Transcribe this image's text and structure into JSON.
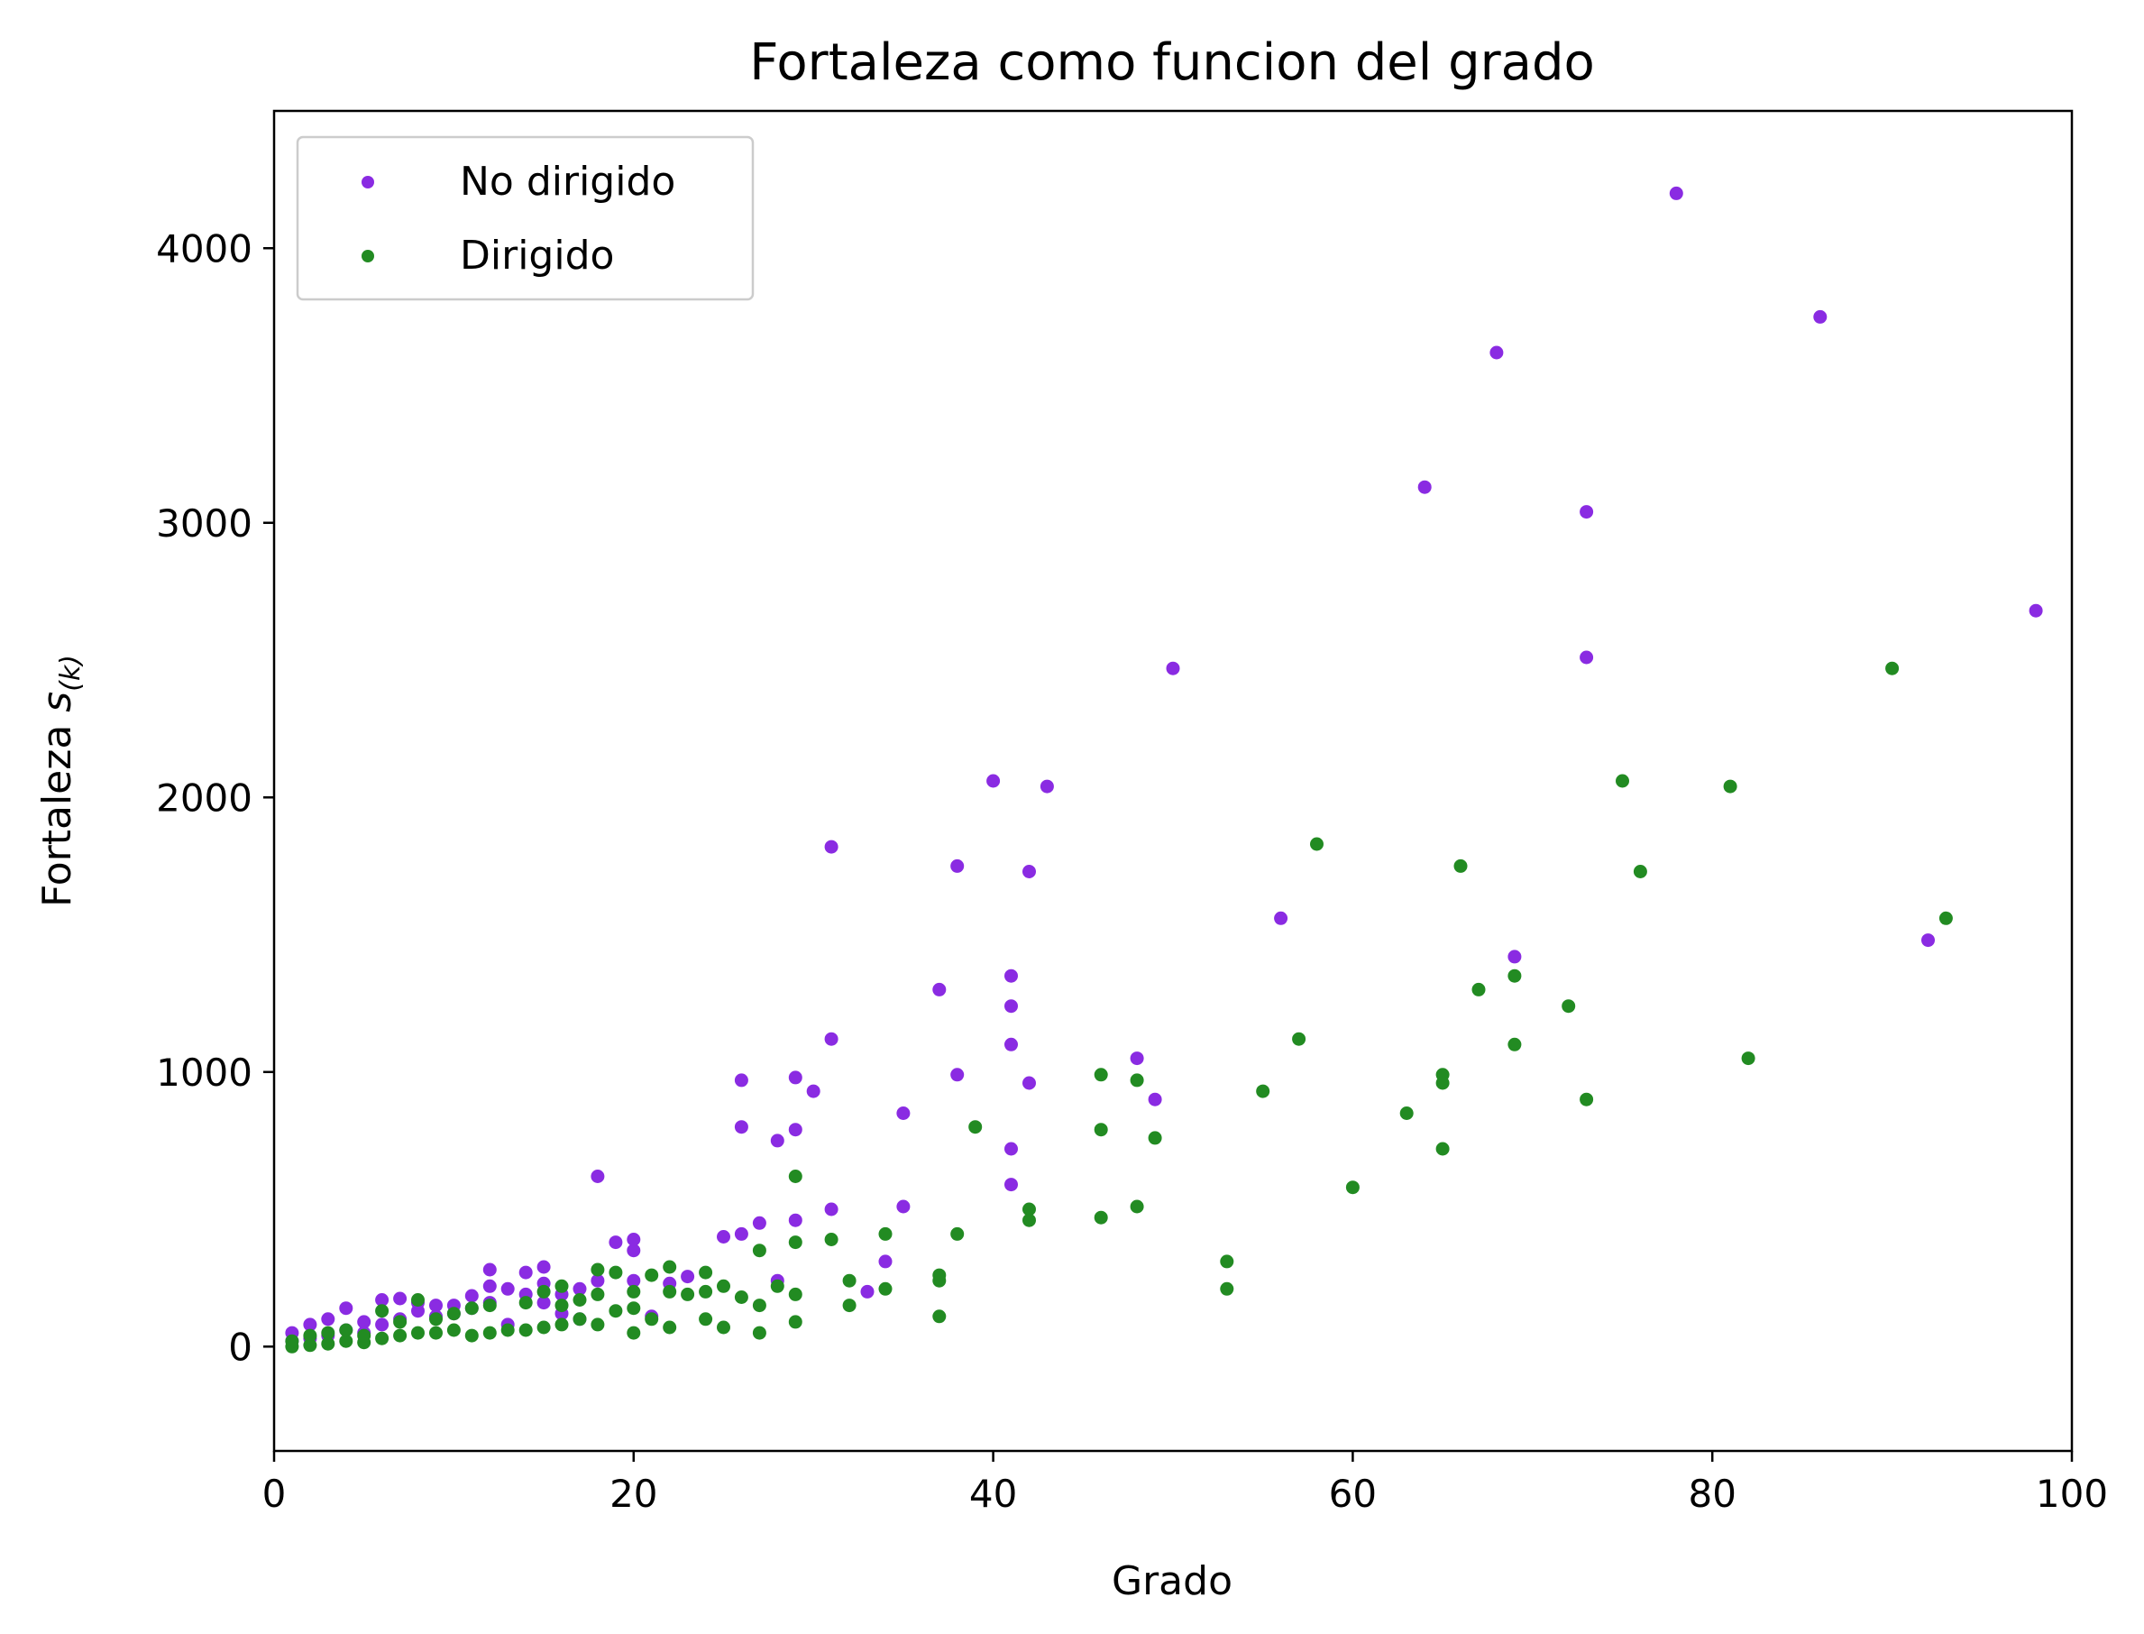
{
  "chart_data": {
    "type": "scatter",
    "title": "Fortaleza como funcion del grado",
    "xlabel": "Grado",
    "ylabel": "Fortaleza s(k)",
    "ylabel_main": "Fortaleza ",
    "ylabel_var": "s",
    "ylabel_sub": "(k)",
    "xlim": [
      0,
      100
    ],
    "ylim": [
      -380,
      4500
    ],
    "xticks": [
      0,
      20,
      40,
      60,
      80,
      100
    ],
    "yticks": [
      0,
      1000,
      2000,
      3000,
      4000
    ],
    "grid": false,
    "legend_position": "top-left",
    "series": [
      {
        "name": "No dirigido",
        "color": "#8a2be2",
        "points": [
          [
            1,
            20
          ],
          [
            1,
            50
          ],
          [
            2,
            30
          ],
          [
            2,
            80
          ],
          [
            3,
            40
          ],
          [
            3,
            100
          ],
          [
            4,
            60
          ],
          [
            4,
            140
          ],
          [
            5,
            50
          ],
          [
            5,
            90
          ],
          [
            6,
            80
          ],
          [
            6,
            170
          ],
          [
            7,
            100
          ],
          [
            7,
            175
          ],
          [
            8,
            130
          ],
          [
            8,
            160
          ],
          [
            9,
            110
          ],
          [
            9,
            150
          ],
          [
            10,
            120
          ],
          [
            10,
            150
          ],
          [
            11,
            140
          ],
          [
            11,
            185
          ],
          [
            12,
            160
          ],
          [
            12,
            220
          ],
          [
            12,
            280
          ],
          [
            13,
            80
          ],
          [
            13,
            210
          ],
          [
            14,
            190
          ],
          [
            14,
            270
          ],
          [
            15,
            160
          ],
          [
            15,
            230
          ],
          [
            15,
            290
          ],
          [
            16,
            120
          ],
          [
            16,
            190
          ],
          [
            17,
            100
          ],
          [
            17,
            210
          ],
          [
            18,
            240
          ],
          [
            18,
            620
          ],
          [
            19,
            380
          ],
          [
            20,
            350
          ],
          [
            20,
            390
          ],
          [
            20,
            240
          ],
          [
            21,
            110
          ],
          [
            22,
            230
          ],
          [
            23,
            255
          ],
          [
            25,
            400
          ],
          [
            26,
            970
          ],
          [
            26,
            800
          ],
          [
            26,
            410
          ],
          [
            27,
            450
          ],
          [
            28,
            750
          ],
          [
            28,
            240
          ],
          [
            29,
            980
          ],
          [
            29,
            790
          ],
          [
            29,
            460
          ],
          [
            30,
            930
          ],
          [
            31,
            1820
          ],
          [
            31,
            1120
          ],
          [
            31,
            500
          ],
          [
            33,
            200
          ],
          [
            34,
            310
          ],
          [
            35,
            850
          ],
          [
            35,
            510
          ],
          [
            37,
            1300
          ],
          [
            38,
            1750
          ],
          [
            38,
            990
          ],
          [
            40,
            2060
          ],
          [
            41,
            1350
          ],
          [
            41,
            1240
          ],
          [
            41,
            1100
          ],
          [
            41,
            720
          ],
          [
            41,
            590
          ],
          [
            42,
            1730
          ],
          [
            42,
            960
          ],
          [
            43,
            2040
          ],
          [
            48,
            1050
          ],
          [
            49,
            900
          ],
          [
            50,
            2470
          ],
          [
            56,
            1560
          ],
          [
            64,
            3130
          ],
          [
            68,
            3620
          ],
          [
            69,
            1420
          ],
          [
            73,
            3040
          ],
          [
            73,
            2510
          ],
          [
            78,
            4200
          ],
          [
            86,
            3750
          ],
          [
            92,
            1480
          ],
          [
            98,
            2680
          ]
        ]
      },
      {
        "name": "Dirigido",
        "color": "#228b22",
        "points": [
          [
            1,
            0
          ],
          [
            1,
            20
          ],
          [
            2,
            5
          ],
          [
            2,
            40
          ],
          [
            3,
            10
          ],
          [
            3,
            50
          ],
          [
            4,
            20
          ],
          [
            4,
            60
          ],
          [
            5,
            15
          ],
          [
            5,
            40
          ],
          [
            6,
            30
          ],
          [
            6,
            130
          ],
          [
            7,
            40
          ],
          [
            7,
            90
          ],
          [
            8,
            50
          ],
          [
            8,
            170
          ],
          [
            9,
            50
          ],
          [
            9,
            100
          ],
          [
            10,
            60
          ],
          [
            10,
            120
          ],
          [
            11,
            40
          ],
          [
            11,
            140
          ],
          [
            12,
            50
          ],
          [
            12,
            150
          ],
          [
            13,
            60
          ],
          [
            14,
            60
          ],
          [
            14,
            160
          ],
          [
            15,
            70
          ],
          [
            15,
            200
          ],
          [
            16,
            80
          ],
          [
            16,
            150
          ],
          [
            16,
            220
          ],
          [
            17,
            100
          ],
          [
            17,
            170
          ],
          [
            18,
            80
          ],
          [
            18,
            190
          ],
          [
            18,
            280
          ],
          [
            19,
            130
          ],
          [
            19,
            270
          ],
          [
            20,
            50
          ],
          [
            20,
            140
          ],
          [
            20,
            200
          ],
          [
            21,
            100
          ],
          [
            21,
            260
          ],
          [
            22,
            70
          ],
          [
            22,
            200
          ],
          [
            22,
            290
          ],
          [
            23,
            190
          ],
          [
            24,
            100
          ],
          [
            24,
            200
          ],
          [
            24,
            270
          ],
          [
            25,
            70
          ],
          [
            25,
            220
          ],
          [
            26,
            180
          ],
          [
            27,
            50
          ],
          [
            27,
            150
          ],
          [
            27,
            350
          ],
          [
            28,
            220
          ],
          [
            29,
            90
          ],
          [
            29,
            190
          ],
          [
            29,
            380
          ],
          [
            29,
            620
          ],
          [
            31,
            390
          ],
          [
            32,
            150
          ],
          [
            32,
            240
          ],
          [
            34,
            210
          ],
          [
            34,
            410
          ],
          [
            37,
            110
          ],
          [
            37,
            240
          ],
          [
            37,
            260
          ],
          [
            38,
            410
          ],
          [
            39,
            800
          ],
          [
            42,
            500
          ],
          [
            42,
            460
          ],
          [
            46,
            470
          ],
          [
            46,
            790
          ],
          [
            46,
            990
          ],
          [
            48,
            510
          ],
          [
            48,
            970
          ],
          [
            49,
            760
          ],
          [
            53,
            310
          ],
          [
            53,
            210
          ],
          [
            55,
            930
          ],
          [
            57,
            1120
          ],
          [
            58,
            1830
          ],
          [
            60,
            580
          ],
          [
            63,
            850
          ],
          [
            65,
            990
          ],
          [
            65,
            960
          ],
          [
            65,
            720
          ],
          [
            66,
            1750
          ],
          [
            67,
            1300
          ],
          [
            69,
            1350
          ],
          [
            69,
            1100
          ],
          [
            72,
            1240
          ],
          [
            73,
            900
          ],
          [
            75,
            2060
          ],
          [
            76,
            1730
          ],
          [
            81,
            2040
          ],
          [
            82,
            1050
          ],
          [
            90,
            2470
          ],
          [
            93,
            1560
          ]
        ]
      }
    ]
  }
}
